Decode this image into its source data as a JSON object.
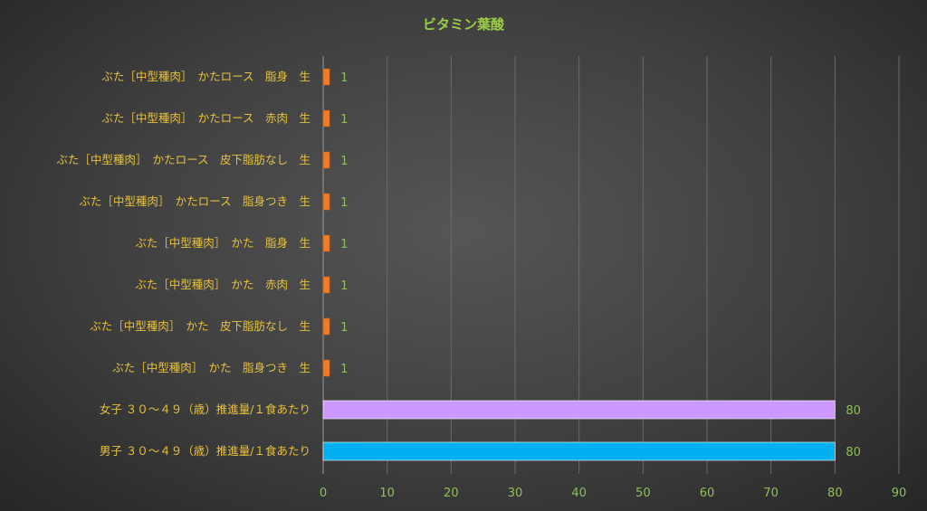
{
  "chart_data": {
    "type": "bar",
    "orientation": "horizontal",
    "title": "ビタミン葉酸",
    "categories": [
      "ぶた［中型種肉］　かたロース　脂身　生",
      "ぶた［中型種肉］　かたロース　赤肉　生",
      "ぶた［中型種肉］　かたロース　皮下脂肪なし　生",
      "ぶた［中型種肉］　かたロース　脂身つき　生",
      "ぶた［中型種肉］　かた　脂身　生",
      "ぶた［中型種肉］　かた　赤肉　生",
      "ぶた［中型種肉］　かた　皮下脂肪なし　生",
      "ぶた［中型種肉］　かた　脂身つき　生",
      "女子 ３０～４９（歳）推進量/１食あたり",
      "男子 ３０～４９（歳）推進量/１食あたり"
    ],
    "values": [
      1,
      1,
      1,
      1,
      1,
      1,
      1,
      1,
      80,
      80
    ],
    "data_labels": [
      "1",
      "1",
      "1",
      "1",
      "1",
      "1",
      "1",
      "1",
      "80",
      "80"
    ],
    "bar_colors": [
      "#f47b20",
      "#f47b20",
      "#f47b20",
      "#f47b20",
      "#f47b20",
      "#f47b20",
      "#f47b20",
      "#f47b20",
      "#cc99ff",
      "#00b0f0"
    ],
    "xlim": [
      0,
      90
    ],
    "xticks": [
      0,
      10,
      20,
      30,
      40,
      50,
      60,
      70,
      80,
      90
    ],
    "grid": true,
    "legend": "none"
  }
}
